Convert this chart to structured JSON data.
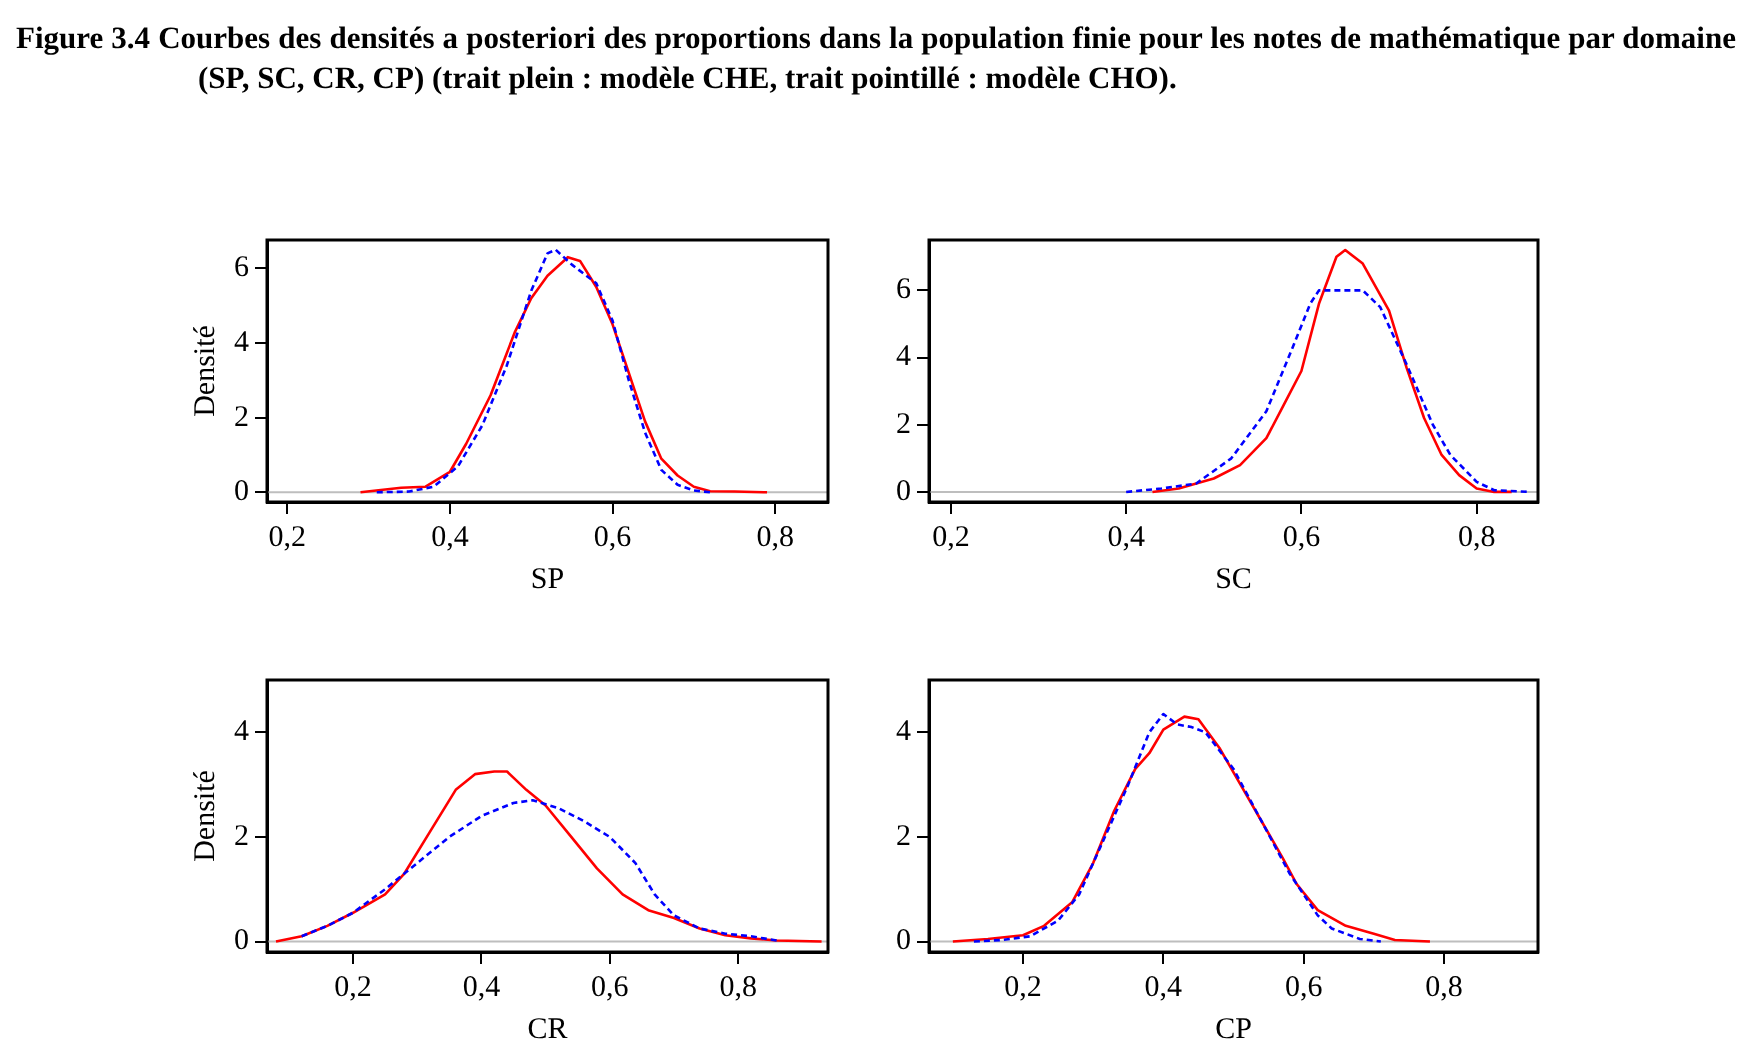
{
  "chart_data": [
    {
      "type": "line",
      "title": "Figure 3.4  Courbes des densités a posteriori des proportions dans la population finie pour les notes de mathématique par domaine (SP, SC, CR, CP) (trait plein : modèle CHE, trait pointillé : modèle CHO).",
      "xlabel": "SP",
      "ylabel": "Densité",
      "xlim": [
        0.175,
        0.865
      ],
      "ylim": [
        -0.26,
        6.76
      ],
      "xticks": [
        {
          "value": 0.2,
          "label": "0,2"
        },
        {
          "value": 0.4,
          "label": "0,4"
        },
        {
          "value": 0.6,
          "label": "0,6"
        },
        {
          "value": 0.8,
          "label": "0,8"
        }
      ],
      "yticks": [
        0,
        2,
        4,
        6
      ],
      "ref_lines": [
        {
          "axis": "y",
          "value": 0,
          "color": "#bebebe"
        }
      ],
      "series": [
        {
          "color": "#ff0000",
          "line_style": "solid",
          "x": [
            0.29,
            0.34,
            0.37,
            0.4,
            0.42,
            0.45,
            0.48,
            0.5,
            0.52,
            0.545,
            0.56,
            0.58,
            0.6,
            0.62,
            0.64,
            0.66,
            0.68,
            0.7,
            0.72,
            0.75,
            0.79
          ],
          "values": [
            0,
            0.12,
            0.15,
            0.55,
            1.3,
            2.6,
            4.3,
            5.2,
            5.8,
            6.3,
            6.2,
            5.5,
            4.5,
            3.2,
            1.9,
            0.9,
            0.45,
            0.15,
            0.03,
            0.02,
            0
          ]
        },
        {
          "color": "#0000ff",
          "line_style": "dashed",
          "x": [
            0.31,
            0.35,
            0.38,
            0.41,
            0.44,
            0.47,
            0.5,
            0.52,
            0.53,
            0.55,
            0.58,
            0.6,
            0.62,
            0.64,
            0.66,
            0.68,
            0.7,
            0.72
          ],
          "values": [
            0,
            0.02,
            0.15,
            0.7,
            1.8,
            3.4,
            5.4,
            6.4,
            6.5,
            6.1,
            5.6,
            4.6,
            3.0,
            1.6,
            0.6,
            0.2,
            0.05,
            0
          ]
        }
      ]
    },
    {
      "type": "line",
      "xlabel": "SC",
      "xlim": [
        0.175,
        0.87
      ],
      "ylim": [
        -0.3,
        7.5
      ],
      "xticks": [
        {
          "value": 0.2,
          "label": "0,2"
        },
        {
          "value": 0.4,
          "label": "0,4"
        },
        {
          "value": 0.6,
          "label": "0,6"
        },
        {
          "value": 0.8,
          "label": "0,8"
        }
      ],
      "yticks": [
        0,
        2,
        4,
        6
      ],
      "ref_lines": [
        {
          "axis": "y",
          "value": 0,
          "color": "#bebebe"
        }
      ],
      "series": [
        {
          "color": "#ff0000",
          "line_style": "solid",
          "x": [
            0.43,
            0.46,
            0.5,
            0.53,
            0.56,
            0.58,
            0.6,
            0.62,
            0.64,
            0.65,
            0.67,
            0.7,
            0.72,
            0.74,
            0.76,
            0.78,
            0.8,
            0.82,
            0.84
          ],
          "values": [
            0,
            0.1,
            0.4,
            0.8,
            1.6,
            2.6,
            3.6,
            5.6,
            7.0,
            7.2,
            6.8,
            5.4,
            3.7,
            2.2,
            1.1,
            0.5,
            0.1,
            0,
            0
          ]
        },
        {
          "color": "#0000ff",
          "line_style": "dashed",
          "x": [
            0.4,
            0.44,
            0.48,
            0.52,
            0.56,
            0.59,
            0.61,
            0.62,
            0.64,
            0.67,
            0.69,
            0.72,
            0.75,
            0.77,
            0.8,
            0.82,
            0.86
          ],
          "values": [
            0,
            0.1,
            0.25,
            1.0,
            2.4,
            4.3,
            5.6,
            6.0,
            6.0,
            6.0,
            5.5,
            3.8,
            2.0,
            1.1,
            0.3,
            0.05,
            0
          ]
        }
      ]
    },
    {
      "type": "line",
      "xlabel": "CR",
      "ylabel": "Densité",
      "xlim": [
        0.066,
        0.94
      ],
      "ylim": [
        -0.2,
        5.0
      ],
      "xticks": [
        {
          "value": 0.2,
          "label": "0,2"
        },
        {
          "value": 0.4,
          "label": "0,4"
        },
        {
          "value": 0.6,
          "label": "0,6"
        },
        {
          "value": 0.8,
          "label": "0,8"
        }
      ],
      "yticks": [
        0,
        2,
        4
      ],
      "ref_lines": [
        {
          "axis": "y",
          "value": 0,
          "color": "#bebebe"
        }
      ],
      "series": [
        {
          "color": "#ff0000",
          "line_style": "solid",
          "x": [
            0.08,
            0.12,
            0.16,
            0.2,
            0.25,
            0.28,
            0.32,
            0.36,
            0.39,
            0.42,
            0.44,
            0.47,
            0.5,
            0.54,
            0.58,
            0.62,
            0.66,
            0.7,
            0.74,
            0.78,
            0.82,
            0.86,
            0.93
          ],
          "values": [
            0,
            0.1,
            0.3,
            0.55,
            0.9,
            1.3,
            2.1,
            2.9,
            3.2,
            3.25,
            3.25,
            2.9,
            2.6,
            2.0,
            1.4,
            0.9,
            0.6,
            0.45,
            0.25,
            0.12,
            0.06,
            0.02,
            0
          ]
        },
        {
          "color": "#0000ff",
          "line_style": "dashed",
          "x": [
            0.12,
            0.16,
            0.2,
            0.25,
            0.3,
            0.35,
            0.4,
            0.45,
            0.48,
            0.52,
            0.56,
            0.6,
            0.64,
            0.67,
            0.7,
            0.74,
            0.78,
            0.82,
            0.86
          ],
          "values": [
            0.1,
            0.3,
            0.55,
            1.0,
            1.5,
            2.0,
            2.4,
            2.65,
            2.7,
            2.55,
            2.3,
            2.0,
            1.5,
            0.9,
            0.5,
            0.25,
            0.15,
            0.1,
            0.02
          ]
        }
      ]
    },
    {
      "type": "line",
      "xlabel": "CP",
      "xlim": [
        0.066,
        0.934
      ],
      "ylim": [
        -0.2,
        5.0
      ],
      "xticks": [
        {
          "value": 0.2,
          "label": "0,2"
        },
        {
          "value": 0.4,
          "label": "0,4"
        },
        {
          "value": 0.6,
          "label": "0,6"
        },
        {
          "value": 0.8,
          "label": "0,8"
        }
      ],
      "yticks": [
        0,
        2,
        4
      ],
      "ref_lines": [
        {
          "axis": "y",
          "value": 0,
          "color": "#bebebe"
        }
      ],
      "series": [
        {
          "color": "#ff0000",
          "line_style": "solid",
          "x": [
            0.1,
            0.15,
            0.2,
            0.23,
            0.27,
            0.3,
            0.33,
            0.36,
            0.38,
            0.4,
            0.43,
            0.45,
            0.48,
            0.51,
            0.54,
            0.57,
            0.59,
            0.62,
            0.66,
            0.7,
            0.73,
            0.78
          ],
          "values": [
            0,
            0.05,
            0.12,
            0.3,
            0.75,
            1.5,
            2.5,
            3.3,
            3.6,
            4.05,
            4.3,
            4.25,
            3.7,
            3.0,
            2.3,
            1.6,
            1.1,
            0.6,
            0.3,
            0.15,
            0.03,
            0
          ]
        },
        {
          "color": "#0000ff",
          "line_style": "dashed",
          "x": [
            0.13,
            0.17,
            0.21,
            0.25,
            0.28,
            0.31,
            0.35,
            0.38,
            0.4,
            0.42,
            0.44,
            0.46,
            0.5,
            0.54,
            0.58,
            0.62,
            0.64,
            0.68,
            0.71
          ],
          "values": [
            0,
            0.03,
            0.1,
            0.4,
            0.9,
            1.8,
            3.0,
            4.0,
            4.35,
            4.15,
            4.1,
            4.0,
            3.3,
            2.3,
            1.3,
            0.5,
            0.25,
            0.05,
            0
          ]
        }
      ]
    }
  ]
}
